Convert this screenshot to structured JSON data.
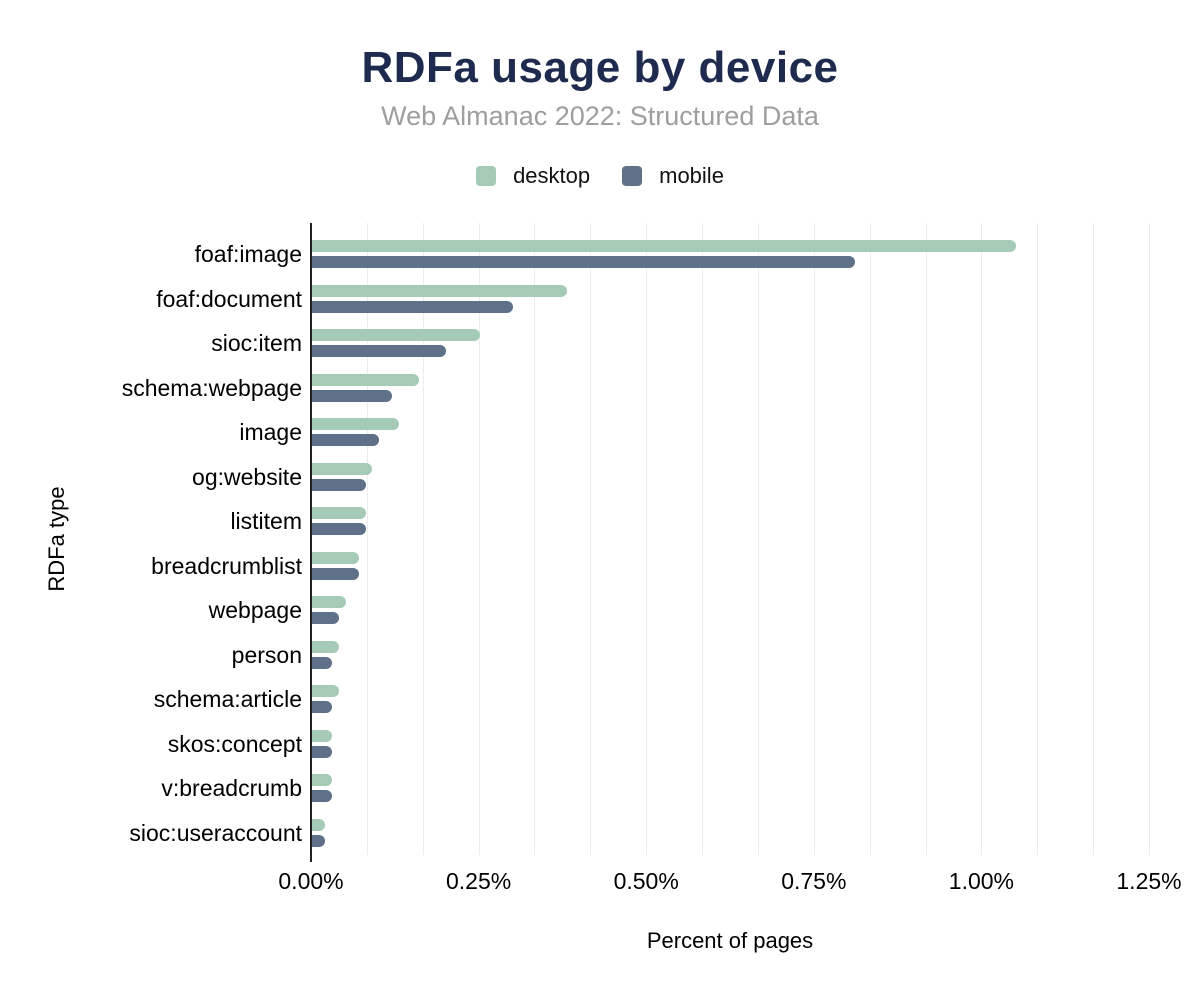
{
  "header": {
    "title": "RDFa usage by device",
    "subtitle": "Web Almanac 2022: Structured Data",
    "title_color": "#1e2b4f",
    "subtitle_color": "#9e9e9e"
  },
  "chart_data": {
    "type": "bar",
    "orientation": "horizontal",
    "title": "RDFa usage by device",
    "subtitle": "Web Almanac 2022: Structured Data",
    "xlabel": "Percent of pages",
    "ylabel": "RDFa type",
    "xlim": [
      0,
      1.25
    ],
    "x_ticks": [
      "0.00%",
      "0.25%",
      "0.50%",
      "0.75%",
      "1.00%",
      "1.25%"
    ],
    "x_tick_values": [
      0,
      0.25,
      0.5,
      0.75,
      1.0,
      1.25
    ],
    "grid": "vertical minor gridlines every 0.0833%",
    "legend_position": "top-center",
    "categories": [
      "foaf:image",
      "foaf:document",
      "sioc:item",
      "schema:webpage",
      "image",
      "og:website",
      "listitem",
      "breadcrumblist",
      "webpage",
      "person",
      "schema:article",
      "skos:concept",
      "v:breadcrumb",
      "sioc:useraccount"
    ],
    "series": [
      {
        "name": "desktop",
        "color": "#a5cab6",
        "values": [
          1.05,
          0.38,
          0.25,
          0.16,
          0.13,
          0.09,
          0.08,
          0.07,
          0.05,
          0.04,
          0.04,
          0.03,
          0.03,
          0.02
        ]
      },
      {
        "name": "mobile",
        "color": "#5e7189",
        "values": [
          0.81,
          0.3,
          0.2,
          0.12,
          0.1,
          0.08,
          0.08,
          0.07,
          0.04,
          0.03,
          0.03,
          0.03,
          0.03,
          0.02
        ]
      }
    ]
  },
  "style_colors": {
    "gridline": "#ececec",
    "axis_line": "#212121",
    "tick_text": "#000000"
  }
}
